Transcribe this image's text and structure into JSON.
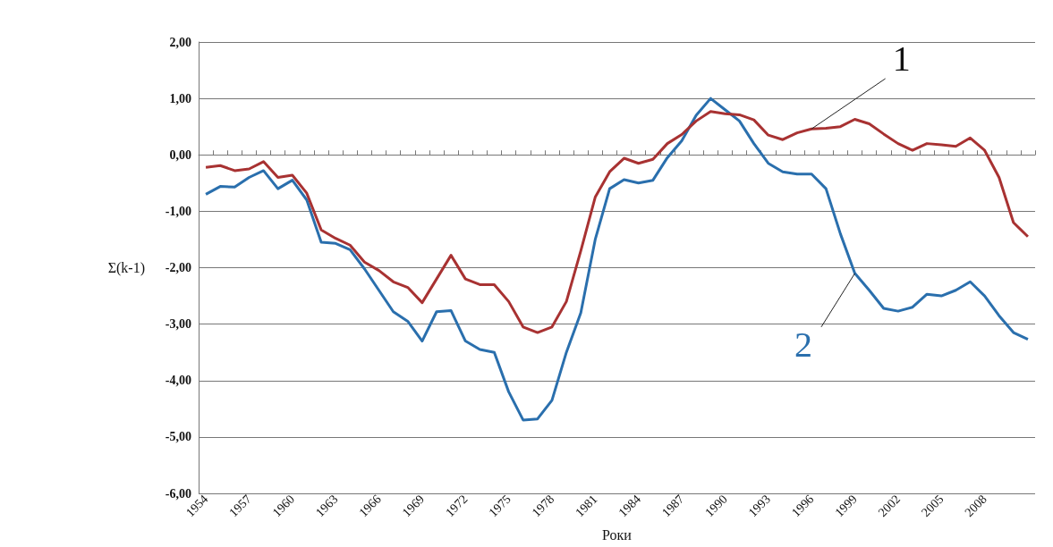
{
  "chart_data": {
    "type": "line",
    "xlabel": "Роки",
    "ylabel": "Σ(k-1)",
    "categories": [
      "1954",
      null,
      null,
      "1957",
      null,
      null,
      "1960",
      null,
      null,
      "1963",
      null,
      null,
      "1966",
      null,
      null,
      "1969",
      null,
      null,
      "1972",
      null,
      null,
      "1975",
      null,
      null,
      "1978",
      null,
      null,
      "1981",
      null,
      null,
      "1984",
      null,
      null,
      "1987",
      null,
      null,
      "1990",
      null,
      null,
      "1993",
      null,
      null,
      "1996",
      null,
      null,
      "1999",
      null,
      null,
      "2002",
      null,
      null,
      "2005",
      null,
      null,
      "2008",
      null,
      null,
      null
    ],
    "series": [
      {
        "name": "1",
        "color": "#a83232",
        "values": [
          -0.22,
          -0.19,
          -0.28,
          -0.25,
          -0.12,
          -0.4,
          -0.36,
          -0.68,
          -1.33,
          -1.48,
          -1.6,
          -1.9,
          -2.05,
          -2.25,
          -2.35,
          -2.62,
          -2.2,
          -1.78,
          -2.2,
          -2.3,
          -2.3,
          -2.6,
          -3.05,
          -3.15,
          -3.05,
          -2.6,
          -1.7,
          -0.75,
          -0.3,
          -0.06,
          -0.15,
          -0.08,
          0.2,
          0.36,
          0.6,
          0.77,
          0.73,
          0.71,
          0.62,
          0.35,
          0.27,
          0.39,
          0.46,
          0.47,
          0.5,
          0.63,
          0.55,
          0.37,
          0.2,
          0.08,
          0.2,
          0.18,
          0.15,
          0.3,
          0.08,
          -0.4,
          -1.2,
          -1.45
        ]
      },
      {
        "name": "2",
        "color": "#2a6fad",
        "values": [
          -0.7,
          -0.56,
          -0.57,
          -0.4,
          -0.28,
          -0.6,
          -0.45,
          -0.8,
          -1.55,
          -1.57,
          -1.68,
          -2.02,
          -2.4,
          -2.78,
          -2.95,
          -3.3,
          -2.78,
          -2.76,
          -3.3,
          -3.45,
          -3.5,
          -4.2,
          -4.7,
          -4.68,
          -4.35,
          -3.5,
          -2.8,
          -1.5,
          -0.6,
          -0.44,
          -0.5,
          -0.45,
          -0.05,
          0.25,
          0.7,
          1.0,
          0.8,
          0.6,
          0.2,
          -0.15,
          -0.3,
          -0.34,
          -0.34,
          -0.6,
          -1.4,
          -2.1,
          -2.4,
          -2.72,
          -2.77,
          -2.7,
          -2.47,
          -2.5,
          -2.4,
          -2.25,
          -2.5,
          -2.85,
          -3.15,
          -3.27
        ]
      }
    ],
    "ylim": [
      -6,
      2
    ],
    "yticks": [
      {
        "value": -6,
        "label": "-6,00"
      },
      {
        "value": -5,
        "label": "-5,00"
      },
      {
        "value": -4,
        "label": "-4,00"
      },
      {
        "value": -3,
        "label": "-3,00"
      },
      {
        "value": -2,
        "label": "-2,00"
      },
      {
        "value": -1,
        "label": "-1,00"
      },
      {
        "value": 0,
        "label": "0,00"
      },
      {
        "value": 1,
        "label": "1,00"
      },
      {
        "value": 2,
        "label": "2,00"
      }
    ],
    "grid": "y",
    "legend": false,
    "marker": "none",
    "line_style": "solid"
  }
}
